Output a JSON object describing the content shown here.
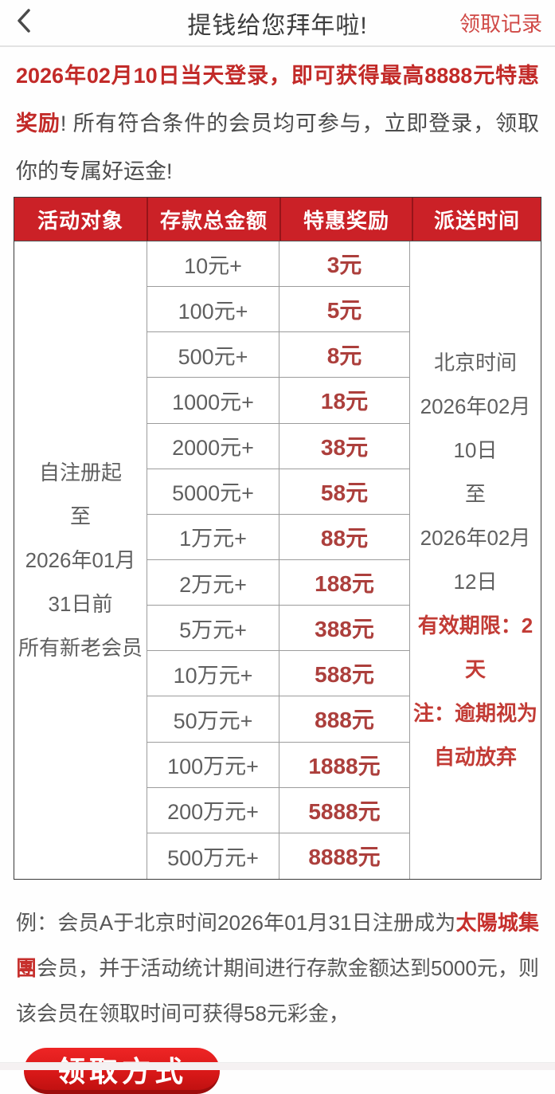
{
  "nav": {
    "title": "提钱给您拜年啦!",
    "record_link": "领取记录"
  },
  "intro": {
    "highlight": "2026年02月10日当天登录，即可获得最高8888元特惠奖励",
    "rest": "! 所有符合条件的会员均可参与，立即登录，领取你的专属好运金!"
  },
  "table": {
    "headers": [
      "活动对象",
      "存款总金额",
      "特惠奖励",
      "派送时间"
    ],
    "target_lines": [
      "自注册起",
      "至",
      "2026年01月",
      "31日前",
      "所有新老会员"
    ],
    "rows": [
      {
        "deposit": "10元+",
        "reward": "3元"
      },
      {
        "deposit": "100元+",
        "reward": "5元"
      },
      {
        "deposit": "500元+",
        "reward": "8元"
      },
      {
        "deposit": "1000元+",
        "reward": "18元"
      },
      {
        "deposit": "2000元+",
        "reward": "38元"
      },
      {
        "deposit": "5000元+",
        "reward": "58元"
      },
      {
        "deposit": "1万元+",
        "reward": "88元"
      },
      {
        "deposit": "2万元+",
        "reward": "188元"
      },
      {
        "deposit": "5万元+",
        "reward": "388元"
      },
      {
        "deposit": "10万元+",
        "reward": "588元"
      },
      {
        "deposit": "50万元+",
        "reward": "888元"
      },
      {
        "deposit": "100万元+",
        "reward": "1888元"
      },
      {
        "deposit": "200万元+",
        "reward": "5888元"
      },
      {
        "deposit": "500万元+",
        "reward": "8888元"
      }
    ],
    "time_gray_lines": [
      "北京时间",
      "2026年02月",
      "10日",
      "至",
      "2026年02月",
      "12日"
    ],
    "time_red_lines": [
      "有效期限：2",
      "天",
      "注：逾期视为",
      "自动放弃"
    ]
  },
  "example": {
    "pre": "例：会员A于北京时间2026年01月31日注册成为",
    "brand": "太陽城集團",
    "post": "会员，并于活动统计期间进行存款金额达到5000元，则该会员在领取时间可获得58元彩金，"
  },
  "cta": {
    "label": "领取方式"
  },
  "colors": {
    "header_bg": "#cb2127",
    "intro_red": "#c22a28",
    "reward_red": "#ac3f3c",
    "note_red": "#c23b35",
    "link_red": "#d04946",
    "brand_red": "#c62f2c",
    "button_red": "#d81818"
  }
}
